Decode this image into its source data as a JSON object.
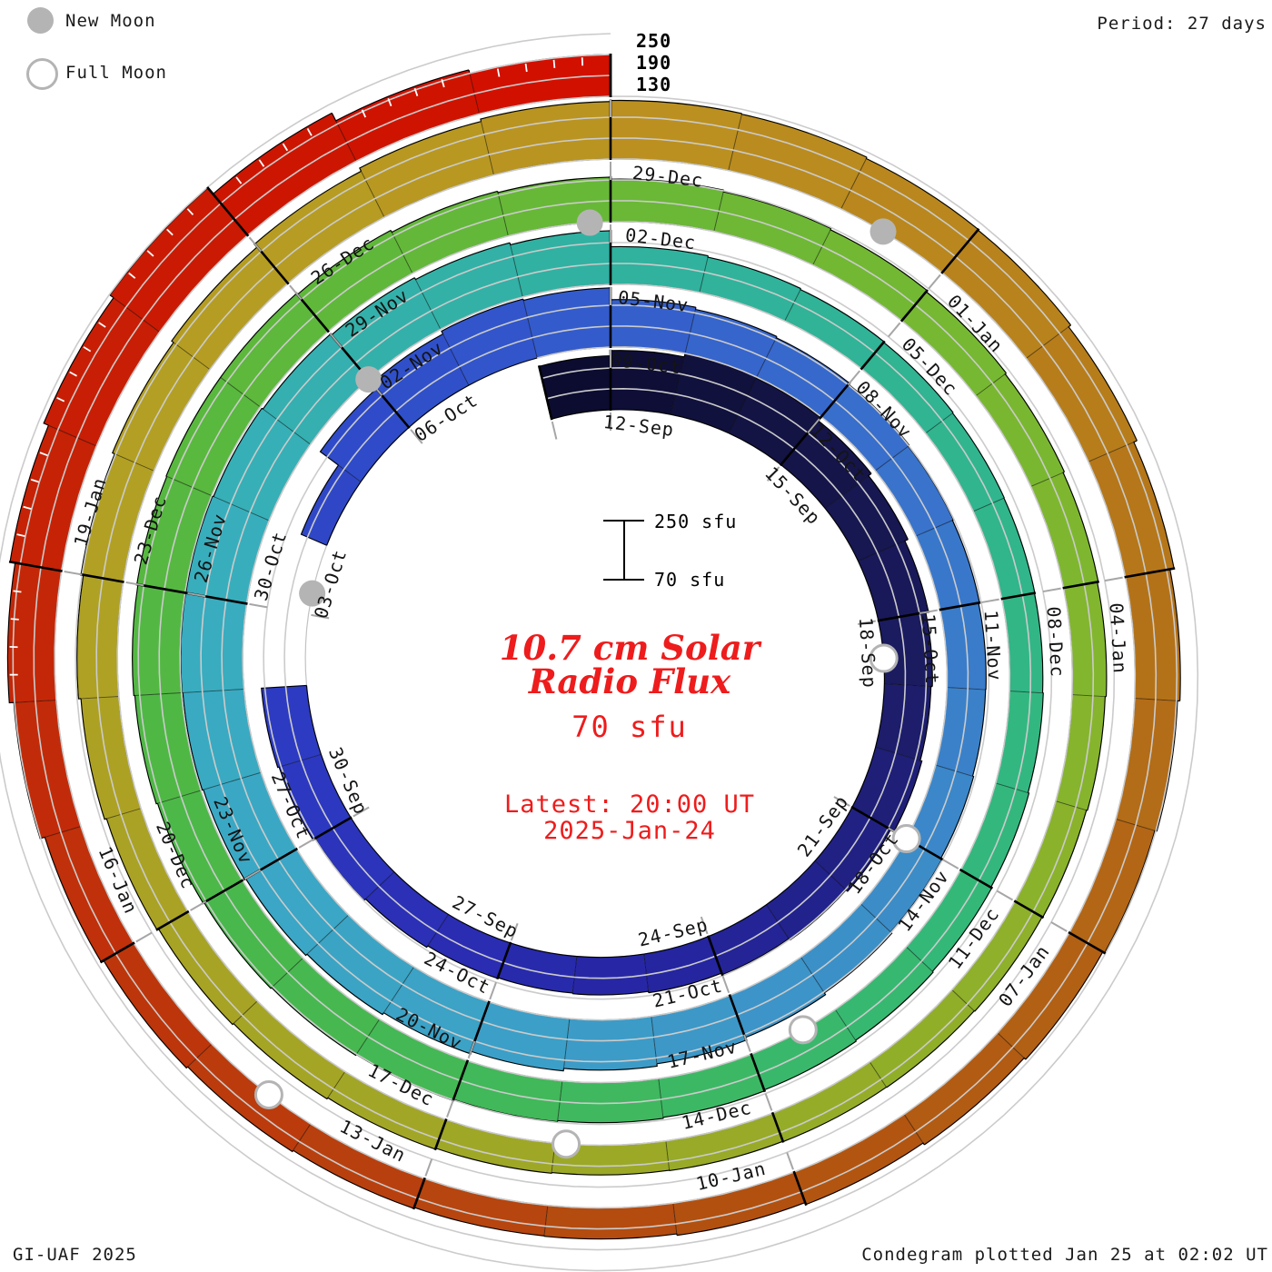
{
  "title": "10.7 cm Solar Radio Flux Condegram",
  "legend": {
    "new_moon_label": "New Moon",
    "full_moon_label": "Full Moon"
  },
  "period_label": "Period: 27 days",
  "radial_axis_labels": [
    "250",
    "190",
    "130"
  ],
  "scale_bar": {
    "top_label": "250 sfu",
    "bottom_label": "70 sfu"
  },
  "center": {
    "title_line1": "10.7 cm Solar",
    "title_line2": "Radio Flux",
    "unit_label": "70 sfu",
    "latest_line1": "Latest: 20:00 UT",
    "latest_line2": "2025-Jan-24"
  },
  "footer": {
    "left": "GI-UAF 2025",
    "right": "Condegram plotted Jan 25 at 02:02 UT"
  },
  "colors": {
    "moon_gray": "#b4b4b4",
    "grid": "#cbcbcb",
    "baseline_gray": "#c2c2c2",
    "tick_gray": "#a6a6a6",
    "outline_black": "#000000",
    "label_text": "#141414",
    "red_text": "#ee1c1c"
  },
  "chart_data": {
    "type": "spiral-bar-condegram",
    "start_date": "11-Sep",
    "end_date": "24-Jan",
    "period_days": 27,
    "turns": 5,
    "baseline_sfu": 70,
    "max_sfu": 250,
    "gridlines_sfu": [
      130,
      190,
      250
    ],
    "label_first_day_index": 1,
    "label_step_days": 3,
    "date_labels": [
      "12-Sep",
      "15-Sep",
      "18-Sep",
      "21-Sep",
      "24-Sep",
      "27-Sep",
      "30-Sep",
      "03-Oct",
      "06-Oct",
      "09-Oct",
      "12-Oct",
      "15-Oct",
      "18-Oct",
      "21-Oct",
      "24-Oct",
      "27-Oct",
      "30-Oct",
      "02-Nov",
      "05-Nov",
      "08-Nov",
      "11-Nov",
      "14-Nov",
      "17-Nov",
      "20-Nov",
      "23-Nov",
      "26-Nov",
      "29-Nov",
      "02-Dec",
      "05-Dec",
      "08-Dec",
      "11-Dec",
      "14-Dec",
      "17-Dec",
      "20-Dec",
      "23-Dec",
      "26-Dec",
      "29-Dec",
      "01-Jan",
      "04-Jan",
      "07-Jan",
      "10-Jan",
      "13-Jan",
      "16-Jan",
      "19-Jan"
    ],
    "flux_sfu": [
      225,
      240,
      250,
      247,
      236,
      226,
      216,
      208,
      204,
      209,
      198,
      192,
      187,
      182,
      178,
      176,
      178,
      183,
      189,
      196,
      200,
      70,
      70,
      150,
      215,
      235,
      244,
      240,
      206,
      200,
      196,
      192,
      188,
      185,
      182,
      181,
      184,
      188,
      193,
      199,
      207,
      214,
      221,
      228,
      234,
      239,
      243,
      246,
      248,
      247,
      244,
      240,
      236,
      230,
      224,
      178,
      174,
      171,
      169,
      167,
      166,
      165,
      167,
      170,
      173,
      176,
      179,
      182,
      185,
      188,
      191,
      194,
      197,
      200,
      204,
      207,
      210,
      212,
      212,
      208,
      202,
      198,
      192,
      187,
      183,
      179,
      175,
      171,
      168,
      165,
      162,
      160,
      158,
      157,
      156,
      155,
      157,
      160,
      164,
      168,
      173,
      179,
      186,
      193,
      200,
      207,
      218,
      228,
      235,
      238,
      236,
      232,
      230,
      222,
      212,
      200,
      193,
      187,
      181,
      175,
      169,
      163,
      159,
      158,
      161,
      165,
      170,
      178,
      192,
      205,
      220,
      235,
      248,
      225,
      200,
      190
    ],
    "moons": [
      {
        "date": "18-Sep",
        "day_frac": 7.1,
        "phase": "full"
      },
      {
        "date": "02-Oct",
        "day_frac": 21.8,
        "phase": "new"
      },
      {
        "date": "17-Oct",
        "day_frac": 36.5,
        "phase": "full"
      },
      {
        "date": "01-Nov",
        "day_frac": 51.5,
        "phase": "new"
      },
      {
        "date": "15-Nov",
        "day_frac": 65.9,
        "phase": "full"
      },
      {
        "date": "01-Dec",
        "day_frac": 81.3,
        "phase": "new"
      },
      {
        "date": "15-Dec",
        "day_frac": 95.4,
        "phase": "full"
      },
      {
        "date": "30-Dec",
        "day_frac": 110.9,
        "phase": "new"
      },
      {
        "date": "13-Jan",
        "day_frac": 124.9,
        "phase": "full"
      }
    ],
    "colormap_stops": [
      [
        0,
        "#0c0c30"
      ],
      [
        4,
        "#15154a"
      ],
      [
        7,
        "#1b1b60"
      ],
      [
        10,
        "#212184"
      ],
      [
        13,
        "#2525a0"
      ],
      [
        16,
        "#2a2cb2"
      ],
      [
        19,
        "#2c38c0"
      ],
      [
        22,
        "#2e42c6"
      ],
      [
        25,
        "#3050ca"
      ],
      [
        28,
        "#3560cc"
      ],
      [
        31,
        "#386ecc"
      ],
      [
        34,
        "#3a7cca"
      ],
      [
        37,
        "#3c8cc8"
      ],
      [
        40,
        "#3d98c8"
      ],
      [
        43,
        "#3ca2c6"
      ],
      [
        46,
        "#3aa8c4"
      ],
      [
        49,
        "#38aebc"
      ],
      [
        52,
        "#34b0aa"
      ],
      [
        55,
        "#30b29e"
      ],
      [
        58,
        "#30b492"
      ],
      [
        61,
        "#32b686"
      ],
      [
        64,
        "#34b878"
      ],
      [
        67,
        "#3cb864"
      ],
      [
        70,
        "#44b854"
      ],
      [
        73,
        "#4cb848"
      ],
      [
        76,
        "#56b840"
      ],
      [
        79,
        "#60b83a"
      ],
      [
        82,
        "#6ab836"
      ],
      [
        85,
        "#76b832"
      ],
      [
        88,
        "#82b62e"
      ],
      [
        91,
        "#8eb02a"
      ],
      [
        94,
        "#98aa28"
      ],
      [
        97,
        "#a2a626"
      ],
      [
        100,
        "#aaa224"
      ],
      [
        103,
        "#b2a024"
      ],
      [
        106,
        "#b69c22"
      ],
      [
        109,
        "#bb9020"
      ],
      [
        112,
        "#b8821c"
      ],
      [
        115,
        "#b47218"
      ],
      [
        118,
        "#b26014"
      ],
      [
        121,
        "#b25010"
      ],
      [
        124,
        "#b8400e"
      ],
      [
        127,
        "#c0300a"
      ],
      [
        130,
        "#c62206"
      ],
      [
        133,
        "#cc1602"
      ],
      [
        135,
        "#d21000"
      ]
    ]
  }
}
